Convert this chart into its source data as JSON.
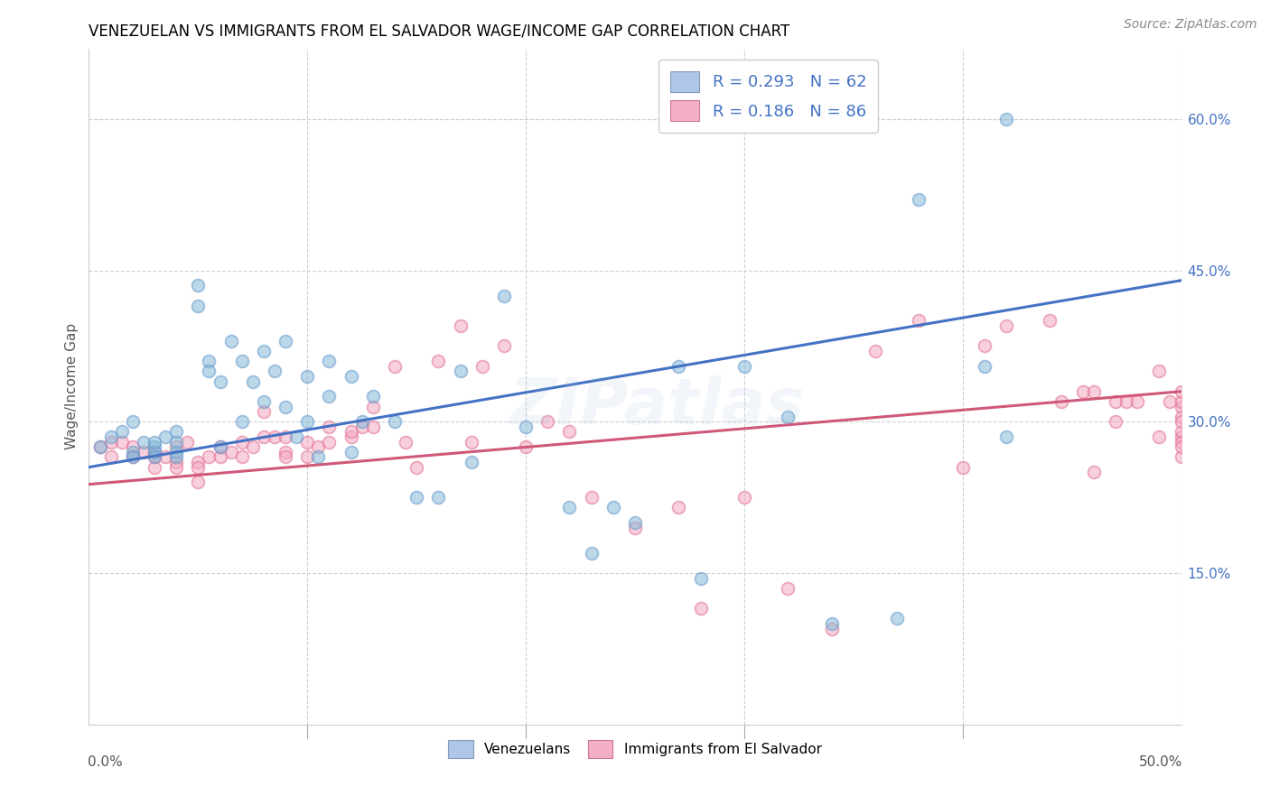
{
  "title": "VENEZUELAN VS IMMIGRANTS FROM EL SALVADOR WAGE/INCOME GAP CORRELATION CHART",
  "source": "Source: ZipAtlas.com",
  "ylabel": "Wage/Income Gap",
  "ytick_values": [
    0.15,
    0.3,
    0.45,
    0.6
  ],
  "xlim": [
    0.0,
    0.5
  ],
  "ylim": [
    0.0,
    0.67
  ],
  "legend_entry1": "R = 0.293   N = 62",
  "legend_entry2": "R = 0.186   N = 86",
  "legend_color1": "#aec6e8",
  "legend_color2": "#f4afc8",
  "scatter_color_blue": "#85b8d8",
  "scatter_color_pink": "#f4a8c0",
  "scatter_edge_blue": "#6699cc",
  "scatter_edge_pink": "#e07090",
  "line_color_blue": "#4472C4",
  "line_color_pink": "#d05878",
  "watermark": "ZIPatlas",
  "background_color": "#ffffff",
  "grid_color": "#d0d0d0",
  "blue_line_x": [
    0.0,
    0.5
  ],
  "blue_line_y": [
    0.255,
    0.44
  ],
  "pink_line_x": [
    0.0,
    0.5
  ],
  "pink_line_y": [
    0.238,
    0.33
  ],
  "venezuelan_x": [
    0.005,
    0.01,
    0.015,
    0.02,
    0.02,
    0.02,
    0.025,
    0.03,
    0.03,
    0.03,
    0.03,
    0.035,
    0.04,
    0.04,
    0.04,
    0.04,
    0.05,
    0.05,
    0.055,
    0.055,
    0.06,
    0.06,
    0.065,
    0.07,
    0.07,
    0.075,
    0.08,
    0.08,
    0.085,
    0.09,
    0.09,
    0.095,
    0.1,
    0.1,
    0.105,
    0.11,
    0.11,
    0.12,
    0.12,
    0.125,
    0.13,
    0.14,
    0.15,
    0.16,
    0.17,
    0.175,
    0.19,
    0.2,
    0.22,
    0.23,
    0.24,
    0.25,
    0.27,
    0.28,
    0.3,
    0.32,
    0.34,
    0.37,
    0.38,
    0.41,
    0.42,
    0.42
  ],
  "venezuelan_y": [
    0.275,
    0.285,
    0.29,
    0.27,
    0.3,
    0.265,
    0.28,
    0.275,
    0.27,
    0.265,
    0.28,
    0.285,
    0.29,
    0.28,
    0.27,
    0.265,
    0.435,
    0.415,
    0.36,
    0.35,
    0.34,
    0.275,
    0.38,
    0.36,
    0.3,
    0.34,
    0.37,
    0.32,
    0.35,
    0.315,
    0.38,
    0.285,
    0.345,
    0.3,
    0.265,
    0.36,
    0.325,
    0.345,
    0.27,
    0.3,
    0.325,
    0.3,
    0.225,
    0.225,
    0.35,
    0.26,
    0.425,
    0.295,
    0.215,
    0.17,
    0.215,
    0.2,
    0.355,
    0.145,
    0.355,
    0.305,
    0.1,
    0.105,
    0.52,
    0.355,
    0.285,
    0.6
  ],
  "salvador_x": [
    0.005,
    0.01,
    0.01,
    0.015,
    0.02,
    0.02,
    0.025,
    0.03,
    0.03,
    0.03,
    0.035,
    0.04,
    0.04,
    0.04,
    0.045,
    0.05,
    0.05,
    0.05,
    0.055,
    0.06,
    0.06,
    0.065,
    0.07,
    0.07,
    0.075,
    0.08,
    0.08,
    0.085,
    0.09,
    0.09,
    0.09,
    0.1,
    0.1,
    0.105,
    0.11,
    0.11,
    0.12,
    0.12,
    0.125,
    0.13,
    0.13,
    0.14,
    0.145,
    0.15,
    0.16,
    0.17,
    0.175,
    0.18,
    0.19,
    0.2,
    0.21,
    0.22,
    0.23,
    0.25,
    0.27,
    0.28,
    0.3,
    0.32,
    0.34,
    0.36,
    0.38,
    0.4,
    0.41,
    0.42,
    0.44,
    0.445,
    0.455,
    0.46,
    0.46,
    0.47,
    0.47,
    0.475,
    0.48,
    0.49,
    0.49,
    0.495,
    0.5,
    0.5,
    0.5,
    0.5,
    0.5,
    0.5,
    0.5,
    0.5,
    0.5,
    0.5
  ],
  "salvador_y": [
    0.275,
    0.265,
    0.28,
    0.28,
    0.265,
    0.275,
    0.27,
    0.265,
    0.255,
    0.27,
    0.265,
    0.26,
    0.275,
    0.255,
    0.28,
    0.26,
    0.255,
    0.24,
    0.265,
    0.265,
    0.275,
    0.27,
    0.265,
    0.28,
    0.275,
    0.285,
    0.31,
    0.285,
    0.27,
    0.285,
    0.265,
    0.265,
    0.28,
    0.275,
    0.295,
    0.28,
    0.285,
    0.29,
    0.295,
    0.295,
    0.315,
    0.355,
    0.28,
    0.255,
    0.36,
    0.395,
    0.28,
    0.355,
    0.375,
    0.275,
    0.3,
    0.29,
    0.225,
    0.195,
    0.215,
    0.115,
    0.225,
    0.135,
    0.095,
    0.37,
    0.4,
    0.255,
    0.375,
    0.395,
    0.4,
    0.32,
    0.33,
    0.33,
    0.25,
    0.32,
    0.3,
    0.32,
    0.32,
    0.35,
    0.285,
    0.32,
    0.315,
    0.285,
    0.305,
    0.29,
    0.28,
    0.265,
    0.3,
    0.275,
    0.32,
    0.33
  ],
  "title_fontsize": 12,
  "axis_label_fontsize": 11,
  "tick_fontsize": 11,
  "legend_fontsize": 13,
  "source_fontsize": 10,
  "watermark_fontsize": 52,
  "watermark_alpha": 0.13,
  "scatter_size": 100,
  "scatter_alpha": 0.55,
  "scatter_linewidth": 1.3,
  "legend_text_color": "#4472C4"
}
